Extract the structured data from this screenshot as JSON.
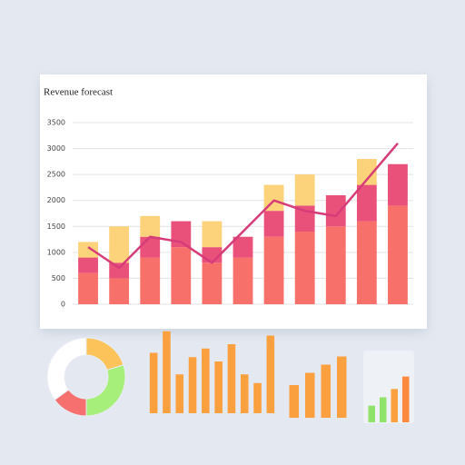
{
  "chart_data": [
    {
      "type": "bar",
      "title": "Revenue forecast",
      "stacked": true,
      "grid": true,
      "categories": [
        null,
        null,
        null,
        null,
        null,
        null,
        null,
        null,
        null,
        null,
        null
      ],
      "ylim": [
        0,
        3500
      ],
      "yticks": [
        0,
        500,
        1000,
        1500,
        2000,
        2500,
        3000,
        3500
      ],
      "series": [
        {
          "color": "#f7716a",
          "values": [
            600,
            500,
            900,
            1100,
            800,
            900,
            1300,
            1400,
            1500,
            1600,
            1900
          ]
        },
        {
          "color": "#e9507a",
          "values": [
            300,
            300,
            400,
            500,
            300,
            400,
            500,
            500,
            600,
            700,
            800
          ]
        },
        {
          "color": "#fcd27a",
          "values": [
            300,
            700,
            400,
            0,
            500,
            0,
            500,
            600,
            0,
            500,
            0
          ]
        },
        {
          "type": "line",
          "color": "#d63d78",
          "values": [
            1100,
            700,
            1300,
            1200,
            800,
            1400,
            2000,
            1800,
            1700,
            2400,
            3100
          ]
        }
      ]
    },
    {
      "type": "pie",
      "donut": true,
      "values": [
        20,
        30,
        15,
        35
      ],
      "colors": [
        "#fbc35a",
        "#a6ef7a",
        "#f77070",
        "#ffffff"
      ]
    },
    {
      "type": "bar",
      "ylim": [
        0,
        100
      ],
      "color": "#fba03e",
      "values": [
        70,
        95,
        45,
        65,
        75,
        60,
        80,
        45,
        35,
        90
      ]
    },
    {
      "type": "bar",
      "ylim": [
        0,
        100
      ],
      "color": "#fba03e",
      "values": [
        40,
        55,
        65,
        75
      ]
    },
    {
      "type": "bar",
      "ylim": [
        0,
        60
      ],
      "colors": [
        "#8fe36a",
        "#8fe36a",
        "#fba03e",
        "#fb8a3e"
      ],
      "values": [
        20,
        30,
        40,
        55
      ]
    }
  ]
}
